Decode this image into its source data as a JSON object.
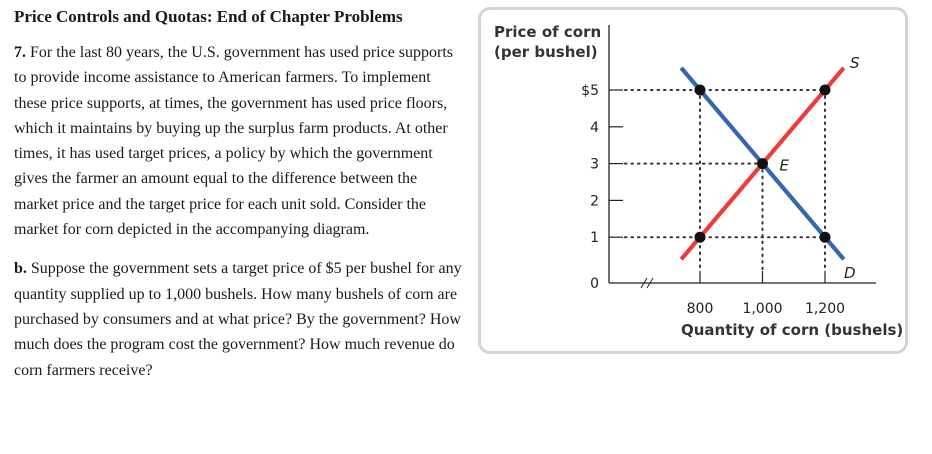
{
  "heading": "Price Controls and Quotas: End of Chapter Problems",
  "problem": {
    "number": "7.",
    "text": "For the last 80 years, the U.S. government has used price supports to provide income assistance to American farmers. To implement these price supports, at times, the government has used price floors, which it maintains by buying up the surplus farm products. At other times, it has used target prices, a policy by which the government gives the farmer an amount equal to the difference between the market price and the target price for each unit sold. Consider the market for corn depicted in the accompanying diagram."
  },
  "part_b": {
    "label": "b.",
    "text": "Suppose the government sets a target price of $5 per bushel for any quantity supplied up to 1,000 bushels. How many bushels of corn are purchased by consumers and at what price? By the government? How much does the program cost the government? How much revenue do corn farmers receive?"
  },
  "chart_data": {
    "type": "line",
    "ylabel_line1": "Price of corn",
    "ylabel_line2": "(per bushel)",
    "xlabel": "Quantity of corn (bushels)",
    "y_ticks": [
      {
        "value": 0,
        "label": "0"
      },
      {
        "value": 1,
        "label": "1"
      },
      {
        "value": 2,
        "label": "2"
      },
      {
        "value": 3,
        "label": "3"
      },
      {
        "value": 4,
        "label": "4"
      },
      {
        "value": 5,
        "label": "$5"
      }
    ],
    "x_ticks": [
      {
        "value": 800,
        "label": "800"
      },
      {
        "value": 1000,
        "label": "1,000"
      },
      {
        "value": 1200,
        "label": "1,200"
      }
    ],
    "ylim": [
      0,
      5
    ],
    "xlim": [
      600,
      1200
    ],
    "axis_break": true,
    "series": [
      {
        "name": "S",
        "color": "#ee3b3b",
        "points": [
          [
            800,
            1
          ],
          [
            1200,
            5
          ]
        ],
        "extend": [
          0.15,
          0.15
        ]
      },
      {
        "name": "D",
        "color": "#3566b0",
        "points": [
          [
            800,
            5
          ],
          [
            1200,
            1
          ]
        ],
        "extend": [
          0.15,
          0.15
        ]
      }
    ],
    "equilibrium": {
      "label": "E",
      "x": 1000,
      "y": 3
    },
    "markers": [
      [
        800,
        5
      ],
      [
        1200,
        5
      ],
      [
        800,
        1
      ],
      [
        1200,
        1
      ],
      [
        1000,
        3
      ]
    ],
    "guides": [
      {
        "y": 5,
        "to_x": 1200
      },
      {
        "y": 3,
        "to_x": 1000
      },
      {
        "y": 1,
        "to_x": 1200
      },
      {
        "x": 800,
        "from_y": 5
      },
      {
        "x": 1000,
        "from_y": 3
      },
      {
        "x": 1200,
        "from_y": 5
      }
    ]
  }
}
